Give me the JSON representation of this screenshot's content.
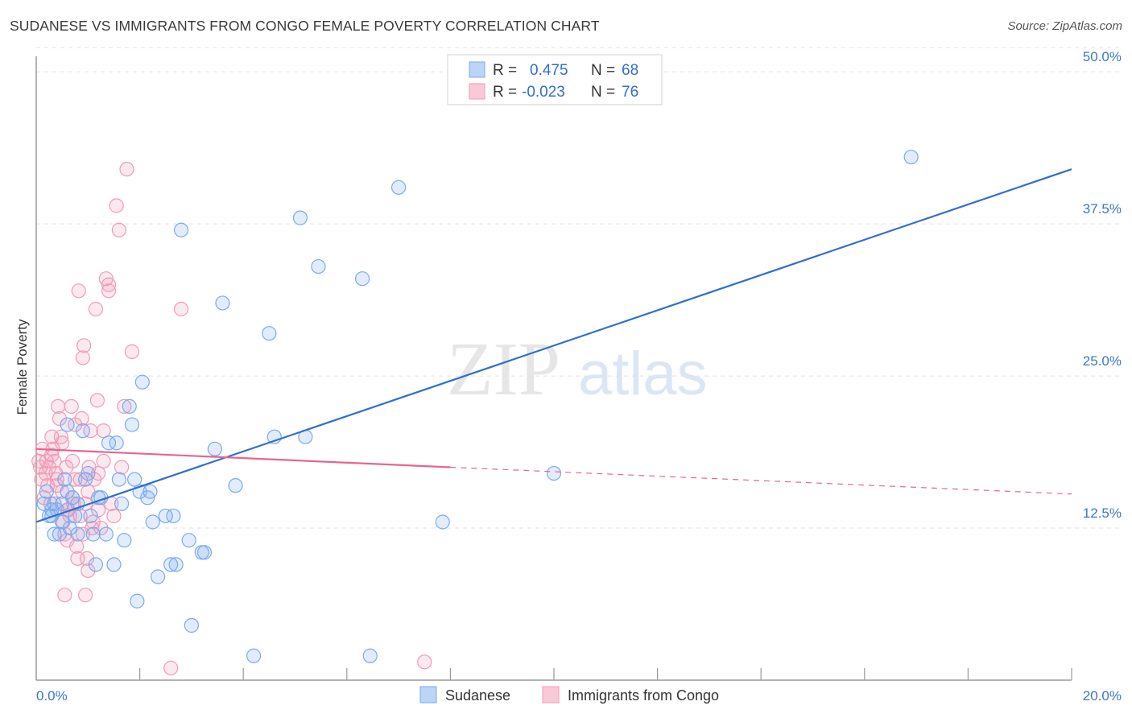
{
  "title": "SUDANESE VS IMMIGRANTS FROM CONGO FEMALE POVERTY CORRELATION CHART",
  "source": "Source: ZipAtlas.com",
  "watermark": {
    "zip": "ZIP",
    "atlas": "atlas"
  },
  "chart_data": {
    "type": "scatter",
    "ylabel": "Female Poverty",
    "xlim": [
      0,
      20
    ],
    "ylim": [
      0,
      52
    ],
    "x_ticks": [
      {
        "value": 0,
        "label": "0.0%"
      },
      {
        "value": 20,
        "label": "20.0%"
      }
    ],
    "y_ticks": [
      {
        "value": 12.5,
        "label": "12.5%"
      },
      {
        "value": 25,
        "label": "25.0%"
      },
      {
        "value": 37.5,
        "label": "37.5%"
      },
      {
        "value": 50,
        "label": "50.0%"
      }
    ],
    "legend": [
      {
        "r_label": "R =",
        "r_value": "0.475",
        "n_label": "N =",
        "n_value": "68"
      },
      {
        "r_label": "R =",
        "r_value": "-0.023",
        "n_label": "N =",
        "n_value": "76"
      }
    ],
    "series": [
      {
        "name": "Sudanese",
        "color": "#7aaaf0",
        "trend": {
          "x0": 0,
          "y0": 13.0,
          "x1": 20,
          "y1": 42.0,
          "color": "#2f6fcf"
        },
        "points": [
          [
            0.15,
            14.5
          ],
          [
            0.25,
            13.5
          ],
          [
            0.3,
            14.0
          ],
          [
            0.35,
            14.5
          ],
          [
            0.4,
            14.0
          ],
          [
            0.45,
            12.0
          ],
          [
            0.5,
            13.0
          ],
          [
            0.55,
            16.5
          ],
          [
            0.6,
            21.0
          ],
          [
            0.65,
            12.5
          ],
          [
            0.7,
            15.0
          ],
          [
            0.75,
            13.5
          ],
          [
            0.8,
            12.0
          ],
          [
            0.9,
            20.5
          ],
          [
            0.95,
            16.5
          ],
          [
            1.05,
            13.5
          ],
          [
            1.1,
            12.0
          ],
          [
            1.15,
            9.5
          ],
          [
            1.25,
            15.0
          ],
          [
            1.35,
            12.0
          ],
          [
            1.4,
            19.5
          ],
          [
            1.5,
            9.5
          ],
          [
            1.55,
            19.5
          ],
          [
            1.6,
            16.5
          ],
          [
            1.65,
            14.5
          ],
          [
            1.7,
            11.5
          ],
          [
            1.8,
            22.5
          ],
          [
            1.85,
            21.0
          ],
          [
            1.9,
            16.5
          ],
          [
            1.95,
            6.5
          ],
          [
            2.0,
            15.5
          ],
          [
            2.05,
            24.5
          ],
          [
            2.15,
            15.0
          ],
          [
            2.2,
            15.5
          ],
          [
            2.25,
            13.0
          ],
          [
            2.35,
            8.5
          ],
          [
            2.5,
            13.5
          ],
          [
            2.6,
            9.5
          ],
          [
            2.65,
            13.5
          ],
          [
            2.7,
            9.5
          ],
          [
            2.8,
            37.0
          ],
          [
            2.95,
            11.5
          ],
          [
            3.0,
            4.5
          ],
          [
            3.2,
            10.5
          ],
          [
            3.25,
            10.5
          ],
          [
            3.45,
            19.0
          ],
          [
            3.6,
            31.0
          ],
          [
            3.85,
            16.0
          ],
          [
            4.2,
            2.0
          ],
          [
            4.5,
            28.5
          ],
          [
            4.6,
            20.0
          ],
          [
            5.1,
            38.0
          ],
          [
            5.2,
            20.0
          ],
          [
            5.45,
            34.0
          ],
          [
            6.3,
            33.0
          ],
          [
            6.45,
            2.0
          ],
          [
            7.0,
            40.5
          ],
          [
            7.85,
            13.0
          ],
          [
            10.0,
            17.0
          ],
          [
            16.9,
            43.0
          ],
          [
            0.2,
            15.5
          ],
          [
            0.35,
            12.0
          ],
          [
            0.5,
            14.5
          ],
          [
            0.8,
            14.5
          ],
          [
            1.0,
            17.0
          ],
          [
            1.2,
            15.0
          ],
          [
            0.3,
            13.5
          ],
          [
            0.6,
            15.5
          ]
        ]
      },
      {
        "name": "Immigrants from Congo",
        "color": "#f29ab6",
        "trend": {
          "x0": 0,
          "y0": 19.0,
          "x1": 8,
          "y1": 17.5,
          "x2": 20,
          "y2": 15.3,
          "color": "#e8658f"
        },
        "points": [
          [
            0.05,
            18.0
          ],
          [
            0.08,
            17.5
          ],
          [
            0.1,
            16.5
          ],
          [
            0.12,
            19.0
          ],
          [
            0.15,
            15.0
          ],
          [
            0.18,
            17.0
          ],
          [
            0.2,
            18.0
          ],
          [
            0.22,
            16.0
          ],
          [
            0.25,
            17.5
          ],
          [
            0.28,
            14.5
          ],
          [
            0.3,
            20.0
          ],
          [
            0.32,
            19.0
          ],
          [
            0.35,
            18.0
          ],
          [
            0.38,
            17.0
          ],
          [
            0.4,
            16.5
          ],
          [
            0.42,
            22.5
          ],
          [
            0.45,
            21.5
          ],
          [
            0.48,
            20.0
          ],
          [
            0.5,
            15.5
          ],
          [
            0.52,
            13.0
          ],
          [
            0.55,
            12.0
          ],
          [
            0.58,
            17.5
          ],
          [
            0.6,
            11.5
          ],
          [
            0.62,
            14.0
          ],
          [
            0.65,
            13.5
          ],
          [
            0.68,
            22.5
          ],
          [
            0.7,
            18.0
          ],
          [
            0.72,
            14.5
          ],
          [
            0.75,
            16.5
          ],
          [
            0.78,
            11.0
          ],
          [
            0.8,
            10.0
          ],
          [
            0.82,
            32.0
          ],
          [
            0.85,
            16.5
          ],
          [
            0.88,
            21.5
          ],
          [
            0.9,
            26.5
          ],
          [
            0.92,
            27.5
          ],
          [
            0.95,
            14.5
          ],
          [
            0.98,
            10.0
          ],
          [
            1.0,
            9.0
          ],
          [
            1.02,
            17.5
          ],
          [
            1.05,
            20.5
          ],
          [
            1.08,
            12.5
          ],
          [
            1.1,
            13.0
          ],
          [
            1.12,
            16.5
          ],
          [
            1.15,
            30.5
          ],
          [
            1.18,
            23.0
          ],
          [
            1.2,
            17.0
          ],
          [
            1.25,
            12.5
          ],
          [
            1.3,
            20.5
          ],
          [
            1.35,
            33.0
          ],
          [
            1.4,
            32.0
          ],
          [
            1.45,
            14.5
          ],
          [
            1.5,
            13.5
          ],
          [
            1.55,
            39.0
          ],
          [
            1.6,
            37.0
          ],
          [
            1.65,
            17.5
          ],
          [
            1.7,
            22.5
          ],
          [
            1.75,
            42.0
          ],
          [
            1.85,
            27.0
          ],
          [
            2.6,
            1.0
          ],
          [
            2.8,
            30.5
          ],
          [
            0.55,
            7.0
          ],
          [
            0.95,
            7.0
          ],
          [
            0.3,
            18.5
          ],
          [
            0.5,
            19.5
          ],
          [
            0.7,
            15.0
          ],
          [
            0.85,
            13.5
          ],
          [
            1.0,
            15.5
          ],
          [
            1.3,
            18.0
          ],
          [
            1.4,
            32.5
          ],
          [
            7.5,
            1.5
          ],
          [
            0.4,
            16.0
          ],
          [
            0.6,
            14.0
          ],
          [
            0.75,
            21.0
          ],
          [
            0.9,
            12.0
          ],
          [
            1.2,
            14.0
          ]
        ]
      }
    ]
  }
}
